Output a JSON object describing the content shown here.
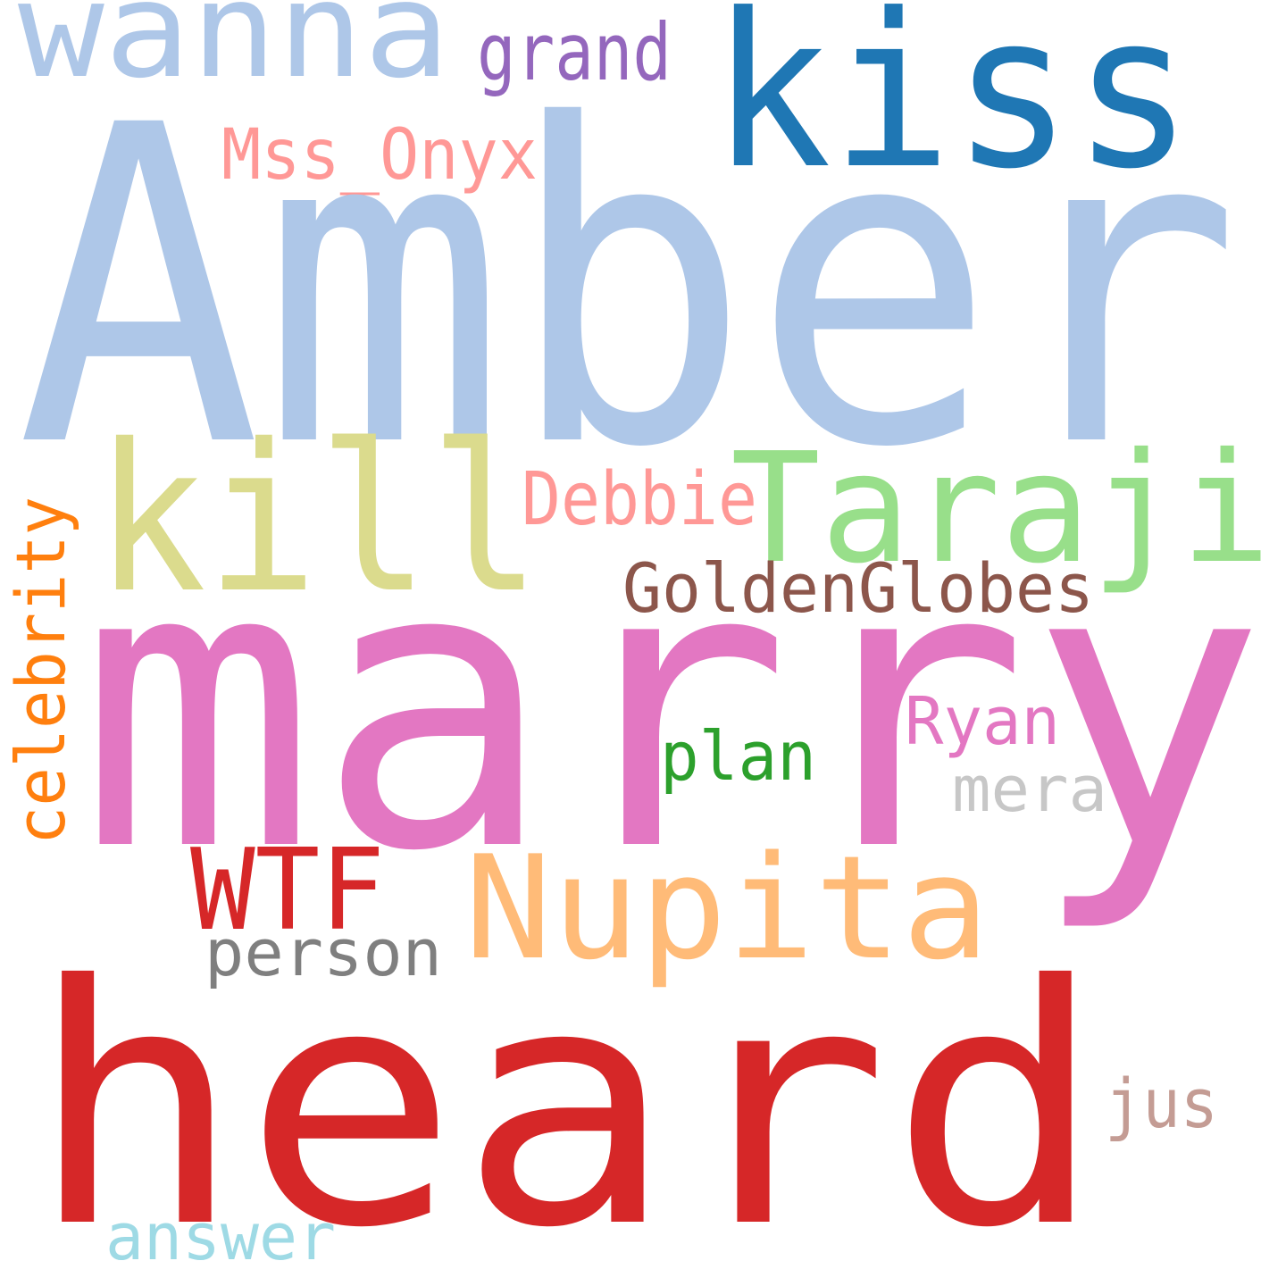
{
  "words": [
    {
      "text": "wanna",
      "color": "#aec7e8"
    },
    {
      "text": "kiss",
      "color": "#1f77b4"
    },
    {
      "text": "grand",
      "color": "#9467bd"
    },
    {
      "text": "Mss_Onyx",
      "color": "#ff9896"
    },
    {
      "text": "Amber",
      "color": "#aec7e8"
    },
    {
      "text": "kill",
      "color": "#dbdb8d"
    },
    {
      "text": "Taraji",
      "color": "#98df8a"
    },
    {
      "text": "Debbie",
      "color": "#ff9896"
    },
    {
      "text": "GoldenGlobes",
      "color": "#8c564b"
    },
    {
      "text": "celebrity",
      "color": "#ff7f0e"
    },
    {
      "text": "marry",
      "color": "#e377c2"
    },
    {
      "text": "Ryan",
      "color": "#e377c2"
    },
    {
      "text": "plan",
      "color": "#2ca02c"
    },
    {
      "text": "mera",
      "color": "#c7c7c7"
    },
    {
      "text": "WTF",
      "color": "#d62728"
    },
    {
      "text": "Nupita",
      "color": "#ffbb78"
    },
    {
      "text": "person",
      "color": "#7f7f7f"
    },
    {
      "text": "heard",
      "color": "#d62728"
    },
    {
      "text": "jus",
      "color": "#c49c94"
    },
    {
      "text": "answer",
      "color": "#9edae5"
    }
  ]
}
